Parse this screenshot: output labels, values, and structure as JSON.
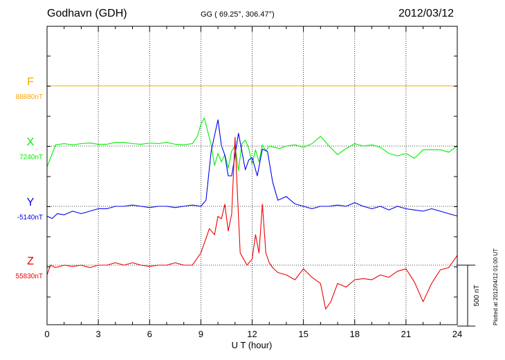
{
  "header": {
    "station": "Godhavn (GDH)",
    "coordinates": "GG ( 69.25°, 306.47°)",
    "date": "2012/03/12"
  },
  "footer": {
    "plotted": "Plotted at 2012/04/12 01:00 UT"
  },
  "chart_data": {
    "type": "line",
    "xlabel": "U T (hour)",
    "xlim": [
      0,
      24
    ],
    "xticks": [
      "0",
      "3",
      "6",
      "9",
      "12",
      "15",
      "18",
      "21",
      "24"
    ],
    "grid": true,
    "scale_bar_label": "500 nT",
    "scale_bar_nT": 500,
    "series": [
      {
        "name": "F",
        "baseline_label": "88880nT",
        "color": "#ffa500",
        "x": [
          0,
          24
        ],
        "y": [
          0,
          0
        ]
      },
      {
        "name": "X",
        "baseline_label": "7240nT",
        "color": "#00ee00",
        "x": [
          0,
          0.2,
          0.5,
          1,
          1.5,
          2,
          2.5,
          3,
          3.5,
          4,
          4.5,
          5,
          5.5,
          6,
          6.5,
          7,
          7.5,
          8,
          8.5,
          8.8,
          9,
          9.2,
          9.4,
          9.6,
          9.8,
          10,
          10.2,
          10.4,
          10.6,
          10.8,
          11,
          11.2,
          11.4,
          11.6,
          11.8,
          12,
          12.2,
          12.4,
          12.6,
          12.8,
          13,
          13.3,
          13.6,
          14,
          14.5,
          15,
          15.5,
          16,
          16.5,
          17,
          17.5,
          18,
          18.5,
          19,
          19.5,
          20,
          20.5,
          21,
          21.5,
          22,
          22.5,
          23,
          23.5,
          24
        ],
        "y": [
          -170,
          -100,
          10,
          20,
          10,
          20,
          25,
          15,
          15,
          30,
          30,
          20,
          15,
          25,
          20,
          30,
          15,
          10,
          20,
          80,
          180,
          230,
          120,
          10,
          -160,
          -60,
          -130,
          -70,
          -180,
          -40,
          0,
          -200,
          20,
          50,
          -20,
          -150,
          -30,
          -130,
          10,
          -40,
          0,
          -10,
          -20,
          0,
          10,
          -10,
          20,
          80,
          0,
          -70,
          -20,
          20,
          0,
          10,
          -10,
          -60,
          -80,
          -60,
          -100,
          -30,
          -30,
          -30,
          -50,
          0
        ]
      },
      {
        "name": "Y",
        "baseline_label": "-5140nT",
        "color": "#0000ee",
        "x": [
          0,
          0.3,
          0.6,
          1,
          1.5,
          2,
          2.5,
          3,
          3.5,
          4,
          4.5,
          5,
          5.5,
          6,
          6.5,
          7,
          7.5,
          8,
          8.5,
          9,
          9.3,
          9.6,
          9.8,
          10,
          10.2,
          10.4,
          10.6,
          10.8,
          11,
          11.2,
          11.4,
          11.6,
          11.8,
          12,
          12.3,
          12.6,
          12.9,
          13.2,
          13.5,
          14,
          14.5,
          15,
          15.5,
          16,
          16.5,
          17,
          17.5,
          18,
          18.5,
          19,
          19.5,
          20,
          20.5,
          21,
          21.5,
          22,
          22.5,
          23,
          23.5,
          24
        ],
        "y": [
          -80,
          -100,
          -60,
          -70,
          -40,
          -60,
          -40,
          -20,
          -20,
          0,
          0,
          10,
          0,
          -10,
          0,
          0,
          -10,
          0,
          10,
          0,
          50,
          450,
          580,
          710,
          500,
          420,
          250,
          250,
          420,
          600,
          450,
          300,
          380,
          400,
          250,
          470,
          450,
          200,
          50,
          80,
          20,
          0,
          -20,
          0,
          0,
          10,
          0,
          30,
          0,
          -20,
          0,
          -30,
          0,
          -20,
          -30,
          -40,
          -20,
          -40,
          -60,
          -80
        ]
      },
      {
        "name": "Z",
        "baseline_label": "55830nT",
        "color": "#ee0000",
        "x": [
          0,
          0.2,
          0.5,
          1,
          1.5,
          2,
          2.5,
          3,
          3.5,
          4,
          4.5,
          5,
          5.5,
          6,
          6.5,
          7,
          7.5,
          8,
          8.5,
          9,
          9.5,
          9.8,
          10,
          10.2,
          10.4,
          10.6,
          10.8,
          11,
          11.1,
          11.3,
          11.5,
          11.7,
          12,
          12.2,
          12.4,
          12.6,
          12.8,
          13,
          13.2,
          13.5,
          14,
          14.5,
          15,
          15.5,
          16,
          16.3,
          16.6,
          17,
          17.5,
          18,
          18.5,
          19,
          19.5,
          20,
          20.5,
          21,
          21.5,
          22,
          22.5,
          23,
          23.5,
          24
        ],
        "y": [
          -80,
          0,
          -20,
          0,
          -10,
          0,
          -20,
          0,
          0,
          20,
          0,
          20,
          0,
          -10,
          0,
          0,
          20,
          0,
          0,
          100,
          300,
          250,
          400,
          380,
          500,
          280,
          420,
          1050,
          700,
          100,
          50,
          0,
          50,
          250,
          100,
          500,
          100,
          20,
          -20,
          -60,
          -80,
          -120,
          -30,
          -100,
          -150,
          -360,
          -300,
          -150,
          -180,
          -120,
          -110,
          -120,
          -80,
          -100,
          -50,
          -30,
          -140,
          -300,
          -150,
          -40,
          -20,
          80
        ]
      }
    ]
  }
}
